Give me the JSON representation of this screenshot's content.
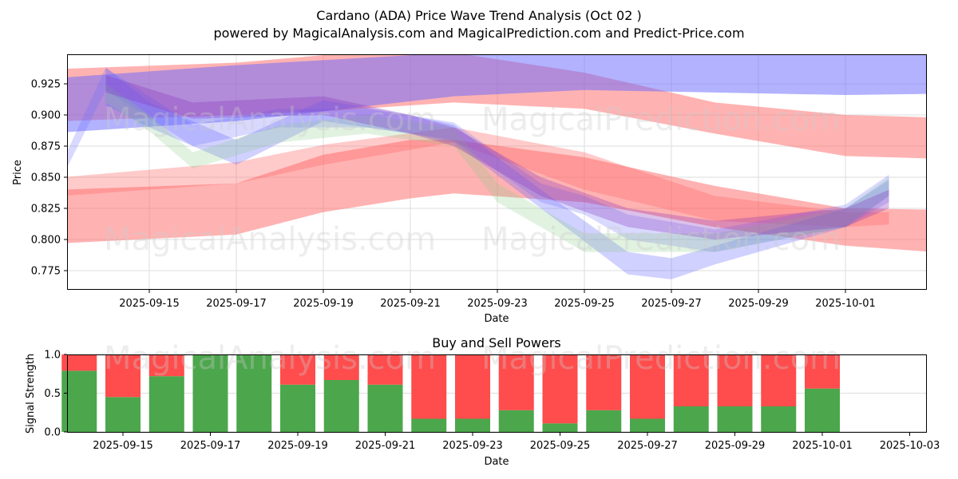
{
  "header": {
    "title": "Cardano (ADA) Price Wave Trend Analysis (Oct 02 )",
    "subtitle": "powered by MagicalAnalysis.com and MagicalPrediction.com and Predict-Price.com"
  },
  "watermarks": [
    "MagicalAnalysis.com",
    "MagicalPrediction.com"
  ],
  "chart_data": [
    {
      "type": "area",
      "title": "",
      "xlabel": "Date",
      "ylabel": "Price",
      "ylim": [
        0.76,
        0.947
      ],
      "xlim": [
        "2025-09-13",
        "2025-10-03"
      ],
      "yticks": [
        0.775,
        0.8,
        0.825,
        0.85,
        0.875,
        0.9,
        0.925
      ],
      "ytick_labels": [
        "0.775",
        "0.800",
        "0.825",
        "0.850",
        "0.875",
        "0.900",
        "0.925"
      ],
      "xticks": [
        "2025-09-15",
        "2025-09-17",
        "2025-09-19",
        "2025-09-21",
        "2025-09-23",
        "2025-09-25",
        "2025-09-27",
        "2025-09-29",
        "2025-10-01"
      ],
      "grid": true,
      "series": [
        {
          "name": "red-band-low",
          "color": "#ff6666",
          "opacity": 0.5,
          "x": [
            "2025-09-13",
            "2025-09-17",
            "2025-09-19",
            "2025-09-21",
            "2025-09-22",
            "2025-09-25",
            "2025-09-28",
            "2025-10-01",
            "2025-10-03"
          ],
          "lower": [
            0.797,
            0.804,
            0.822,
            0.833,
            0.837,
            0.83,
            0.81,
            0.795,
            0.79
          ],
          "upper": [
            0.84,
            0.845,
            0.868,
            0.88,
            0.88,
            0.866,
            0.843,
            0.825,
            0.824
          ]
        },
        {
          "name": "red-band-mid",
          "color": "#ff6666",
          "opacity": 0.35,
          "x": [
            "2025-09-13",
            "2025-09-17",
            "2025-09-19",
            "2025-09-22",
            "2025-09-25",
            "2025-09-28",
            "2025-10-01",
            "2025-10-02"
          ],
          "lower": [
            0.835,
            0.845,
            0.86,
            0.878,
            0.84,
            0.815,
            0.81,
            0.812
          ],
          "upper": [
            0.85,
            0.862,
            0.876,
            0.89,
            0.87,
            0.835,
            0.822,
            0.822
          ]
        },
        {
          "name": "red-band-upper",
          "color": "#ff6666",
          "opacity": 0.5,
          "x": [
            "2025-09-13",
            "2025-09-17",
            "2025-09-19",
            "2025-09-22",
            "2025-09-25",
            "2025-09-28",
            "2025-10-01",
            "2025-10-03"
          ],
          "lower": [
            0.895,
            0.9,
            0.903,
            0.91,
            0.905,
            0.885,
            0.867,
            0.865
          ],
          "upper": [
            0.937,
            0.942,
            0.948,
            0.95,
            0.934,
            0.91,
            0.9,
            0.898
          ]
        },
        {
          "name": "blue-band-top",
          "color": "#6666ff",
          "opacity": 0.5,
          "x": [
            "2025-09-13",
            "2025-09-17",
            "2025-09-22",
            "2025-09-25",
            "2025-09-28",
            "2025-10-01",
            "2025-10-03"
          ],
          "lower": [
            0.886,
            0.895,
            0.915,
            0.92,
            0.918,
            0.916,
            0.917
          ],
          "upper": [
            0.93,
            0.94,
            0.95,
            0.95,
            0.95,
            0.95,
            0.95
          ]
        },
        {
          "name": "blue-wave-1",
          "color": "#6666ff",
          "opacity": 0.3,
          "x": [
            "2025-09-14",
            "2025-09-15",
            "2025-09-17",
            "2025-09-19",
            "2025-09-21",
            "2025-09-22",
            "2025-09-24",
            "2025-09-26",
            "2025-09-27",
            "2025-09-28",
            "2025-10-01",
            "2025-10-02"
          ],
          "lower": [
            0.908,
            0.89,
            0.86,
            0.895,
            0.885,
            0.878,
            0.825,
            0.772,
            0.768,
            0.78,
            0.81,
            0.835
          ],
          "upper": [
            0.938,
            0.91,
            0.88,
            0.912,
            0.9,
            0.892,
            0.84,
            0.79,
            0.785,
            0.795,
            0.825,
            0.848
          ]
        },
        {
          "name": "blue-wave-2",
          "color": "#6666ff",
          "opacity": 0.25,
          "x": [
            "2025-09-13",
            "2025-09-14",
            "2025-09-16",
            "2025-09-18",
            "2025-09-20",
            "2025-09-22",
            "2025-09-24",
            "2025-09-25",
            "2025-09-26",
            "2025-09-28",
            "2025-10-01",
            "2025-10-02"
          ],
          "lower": [
            0.85,
            0.92,
            0.875,
            0.89,
            0.89,
            0.88,
            0.83,
            0.82,
            0.8,
            0.79,
            0.81,
            0.83
          ],
          "upper": [
            0.862,
            0.938,
            0.892,
            0.905,
            0.905,
            0.894,
            0.845,
            0.835,
            0.82,
            0.808,
            0.828,
            0.852
          ]
        },
        {
          "name": "green-wave",
          "color": "#88cc88",
          "opacity": 0.25,
          "x": [
            "2025-09-14",
            "2025-09-15",
            "2025-09-16",
            "2025-09-18",
            "2025-09-20",
            "2025-09-22",
            "2025-09-23",
            "2025-09-25",
            "2025-09-27",
            "2025-09-28",
            "2025-10-01",
            "2025-10-02"
          ],
          "lower": [
            0.91,
            0.887,
            0.857,
            0.878,
            0.885,
            0.875,
            0.83,
            0.79,
            0.79,
            0.79,
            0.81,
            0.835
          ],
          "upper": [
            0.925,
            0.9,
            0.87,
            0.892,
            0.9,
            0.89,
            0.845,
            0.805,
            0.805,
            0.805,
            0.825,
            0.85
          ]
        },
        {
          "name": "purple-wave",
          "color": "#8833bb",
          "opacity": 0.3,
          "x": [
            "2025-09-14",
            "2025-09-16",
            "2025-09-19",
            "2025-09-21",
            "2025-09-22",
            "2025-09-24",
            "2025-09-26",
            "2025-09-28",
            "2025-10-01",
            "2025-10-02"
          ],
          "lower": [
            0.918,
            0.897,
            0.9,
            0.885,
            0.875,
            0.835,
            0.81,
            0.8,
            0.81,
            0.825
          ],
          "upper": [
            0.932,
            0.91,
            0.915,
            0.9,
            0.89,
            0.85,
            0.825,
            0.815,
            0.825,
            0.84
          ]
        }
      ]
    },
    {
      "type": "bar",
      "title": "Buy and Sell Powers",
      "xlabel": "Date",
      "ylabel": "Signal Strength",
      "ylim": [
        0,
        1
      ],
      "yticks": [
        0.0,
        0.5,
        1.0
      ],
      "ytick_labels": [
        "0.0",
        "0.5",
        "1.0"
      ],
      "xticks": [
        "2025-09-15",
        "2025-09-17",
        "2025-09-19",
        "2025-09-21",
        "2025-09-23",
        "2025-09-25",
        "2025-09-27",
        "2025-09-29",
        "2025-10-01",
        "2025-10-03"
      ],
      "grid": true,
      "categories": [
        "2025-09-15",
        "2025-09-16",
        "2025-09-17",
        "2025-09-18",
        "2025-09-19",
        "2025-09-20",
        "2025-09-21",
        "2025-09-22",
        "2025-09-23",
        "2025-09-24",
        "2025-09-25",
        "2025-09-26",
        "2025-09-27",
        "2025-09-28",
        "2025-09-29",
        "2025-09-30",
        "2025-10-01",
        "2025-10-02"
      ],
      "series": [
        {
          "name": "Buy",
          "color": "#4ca64c",
          "values": [
            0.79,
            0.45,
            0.72,
            1.0,
            1.0,
            0.61,
            0.67,
            0.61,
            0.17,
            0.17,
            0.28,
            0.11,
            0.28,
            0.17,
            0.33,
            0.33,
            0.33,
            0.56
          ]
        },
        {
          "name": "Sell",
          "color": "#ff4c4c",
          "values": [
            0.21,
            0.55,
            0.28,
            0.0,
            0.0,
            0.39,
            0.33,
            0.39,
            0.83,
            0.83,
            0.72,
            0.89,
            0.72,
            0.83,
            0.67,
            0.67,
            0.67,
            0.44
          ]
        }
      ]
    }
  ]
}
